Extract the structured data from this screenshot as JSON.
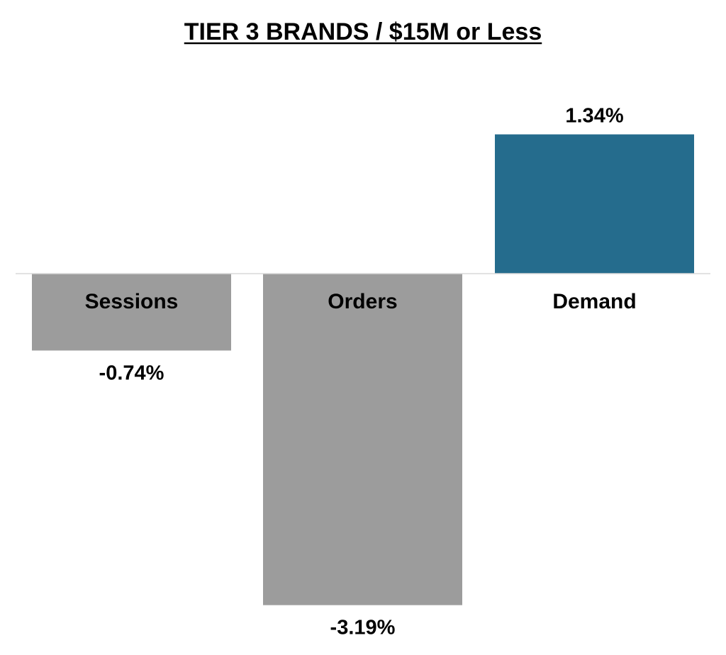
{
  "chart_data": {
    "type": "bar",
    "title": "TIER 3 BRANDS / $15M or Less",
    "categories": [
      "Sessions",
      "Orders",
      "Demand"
    ],
    "values": [
      -0.74,
      -3.19,
      1.34
    ],
    "value_labels": [
      "-0.74%",
      "-3.19%",
      "1.34%"
    ],
    "colors": {
      "positive": "#256C8D",
      "negative": "#9C9C9C",
      "baseline": "#D9D9D9"
    },
    "xlabel": "",
    "ylabel": "",
    "grid": false,
    "legend": "none"
  }
}
